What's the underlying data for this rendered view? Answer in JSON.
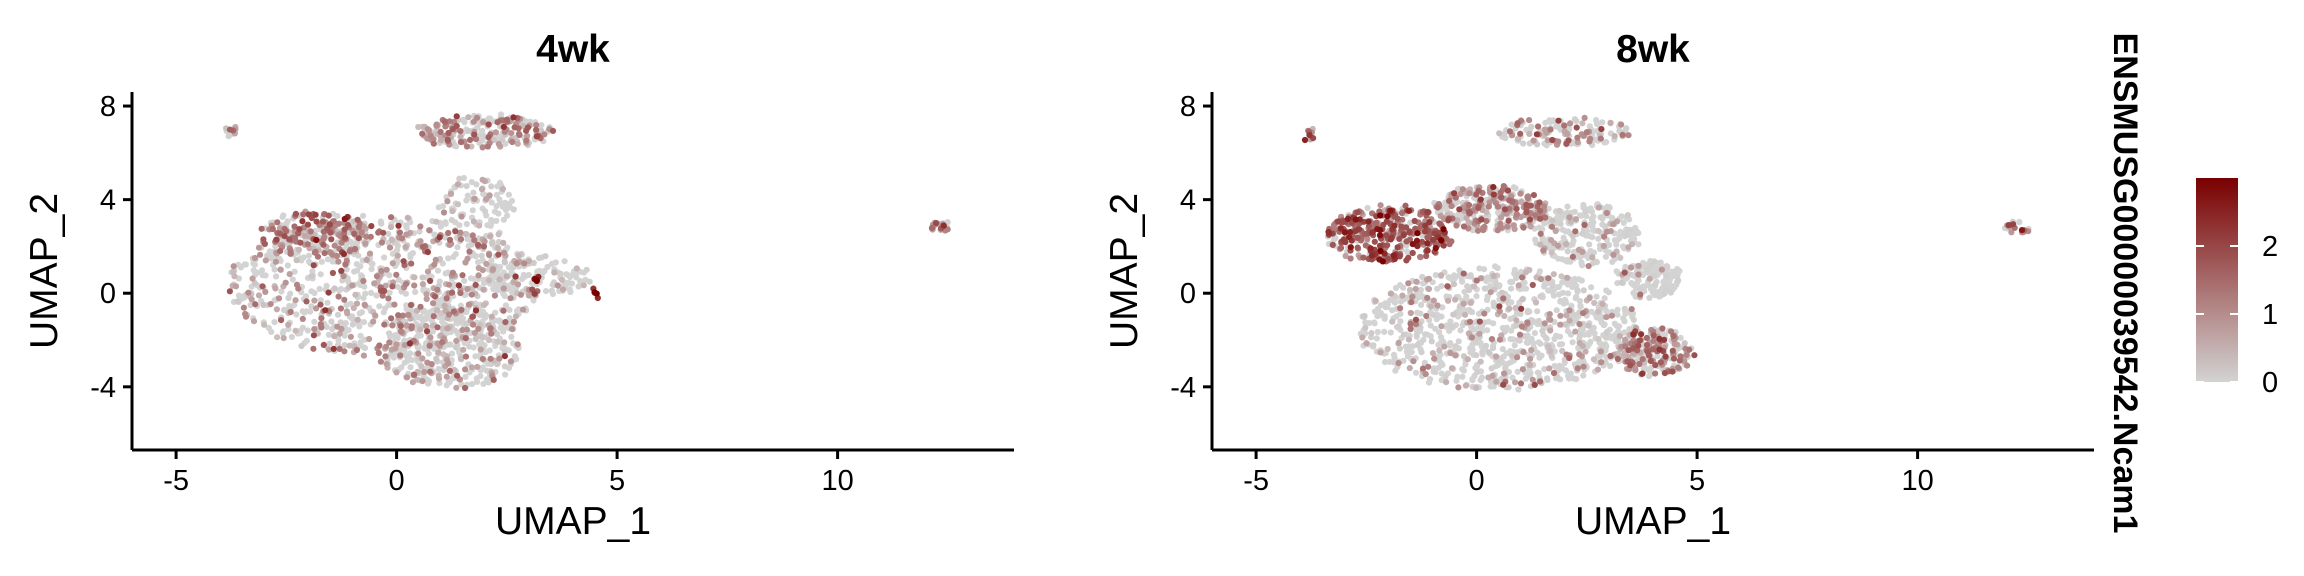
{
  "chart_data": {
    "type": "scatter",
    "panels": [
      {
        "title": "4wk",
        "xlabel": "UMAP_1",
        "ylabel": "UMAP_2",
        "xlim": [
          -6,
          14
        ],
        "ylim": [
          -6.7,
          8.6
        ],
        "xticks": [
          -5,
          0,
          5,
          10
        ],
        "xtick_labels": [
          "-5",
          "0",
          "5",
          "10"
        ],
        "yticks": [
          -4,
          0,
          4,
          8
        ],
        "ytick_labels": [
          "-4",
          "0",
          "4",
          "8"
        ],
        "clusters": [
          {
            "cx": -0.3,
            "cy": 0.3,
            "rx": 3.5,
            "ry": 3.0,
            "n": 900,
            "expr_mean": 0.7,
            "expr_prob": 0.45
          },
          {
            "cx": 1.2,
            "cy": -2.3,
            "rx": 1.6,
            "ry": 1.8,
            "n": 350,
            "expr_mean": 0.6,
            "expr_prob": 0.4
          },
          {
            "cx": 2.0,
            "cy": 6.9,
            "rx": 1.5,
            "ry": 0.7,
            "n": 220,
            "expr_mean": 0.9,
            "expr_prob": 0.55
          },
          {
            "cx": 3.2,
            "cy": 0.7,
            "rx": 1.2,
            "ry": 0.9,
            "n": 130,
            "expr_mean": 0.3,
            "expr_prob": 0.25
          },
          {
            "cx": -1.8,
            "cy": 2.5,
            "rx": 1.3,
            "ry": 1.0,
            "n": 180,
            "expr_mean": 1.2,
            "expr_prob": 0.6
          },
          {
            "cx": 1.8,
            "cy": 3.5,
            "rx": 0.9,
            "ry": 1.6,
            "n": 100,
            "expr_mean": 0.3,
            "expr_prob": 0.25
          },
          {
            "cx": 12.3,
            "cy": 2.85,
            "rx": 0.25,
            "ry": 0.25,
            "n": 22,
            "expr_mean": 1.0,
            "expr_prob": 0.7
          },
          {
            "cx": -3.75,
            "cy": 7.0,
            "rx": 0.1,
            "ry": 0.3,
            "n": 10,
            "expr_mean": 0.8,
            "expr_prob": 0.6
          },
          {
            "cx": 4.5,
            "cy": 0.0,
            "rx": 0.05,
            "ry": 0.2,
            "n": 5,
            "expr_mean": 2.5,
            "expr_prob": 1.0
          },
          {
            "cx": 3.2,
            "cy": 0.6,
            "rx": 0.1,
            "ry": 0.2,
            "n": 4,
            "expr_mean": 2.8,
            "expr_prob": 1.0
          }
        ]
      },
      {
        "title": "8wk",
        "xlabel": "UMAP_1",
        "ylabel": "UMAP_2",
        "xlim": [
          -6,
          14
        ],
        "ylim": [
          -6.7,
          8.6
        ],
        "xticks": [
          -5,
          0,
          5,
          10
        ],
        "xtick_labels": [
          "-5",
          "0",
          "5",
          "10"
        ],
        "yticks": [
          -4,
          0,
          4,
          8
        ],
        "ytick_labels": [
          "-4",
          "0",
          "4",
          "8"
        ],
        "clusters": [
          {
            "cx": -2.0,
            "cy": 2.5,
            "rx": 1.4,
            "ry": 1.2,
            "n": 350,
            "expr_mean": 1.6,
            "expr_prob": 0.85
          },
          {
            "cx": 0.3,
            "cy": 3.6,
            "rx": 1.3,
            "ry": 1.0,
            "n": 300,
            "expr_mean": 1.0,
            "expr_prob": 0.6
          },
          {
            "cx": 0.5,
            "cy": -1.5,
            "rx": 3.2,
            "ry": 2.6,
            "n": 900,
            "expr_mean": 0.4,
            "expr_prob": 0.3
          },
          {
            "cx": 4.0,
            "cy": -2.5,
            "rx": 0.9,
            "ry": 1.0,
            "n": 220,
            "expr_mean": 1.0,
            "expr_prob": 0.6
          },
          {
            "cx": 2.0,
            "cy": 6.9,
            "rx": 1.5,
            "ry": 0.6,
            "n": 140,
            "expr_mean": 0.9,
            "expr_prob": 0.5
          },
          {
            "cx": 3.9,
            "cy": 0.6,
            "rx": 0.7,
            "ry": 0.8,
            "n": 160,
            "expr_mean": 0.2,
            "expr_prob": 0.15
          },
          {
            "cx": 2.5,
            "cy": 2.5,
            "rx": 1.2,
            "ry": 1.3,
            "n": 250,
            "expr_mean": 0.3,
            "expr_prob": 0.2
          },
          {
            "cx": 12.2,
            "cy": 2.8,
            "rx": 0.3,
            "ry": 0.22,
            "n": 22,
            "expr_mean": 1.0,
            "expr_prob": 0.7
          },
          {
            "cx": -3.8,
            "cy": 6.8,
            "rx": 0.1,
            "ry": 0.3,
            "n": 8,
            "expr_mean": 1.5,
            "expr_prob": 0.8
          }
        ]
      }
    ],
    "legend": {
      "title": "ENSMUSG00000039542.Ncam1",
      "placement": "right",
      "min": 0,
      "max": 3.0,
      "ticks": [
        0,
        1,
        2
      ],
      "tick_labels": [
        "0",
        "1",
        "2"
      ],
      "color_low": "#d3d3d3",
      "color_high": "#7a0000"
    }
  }
}
